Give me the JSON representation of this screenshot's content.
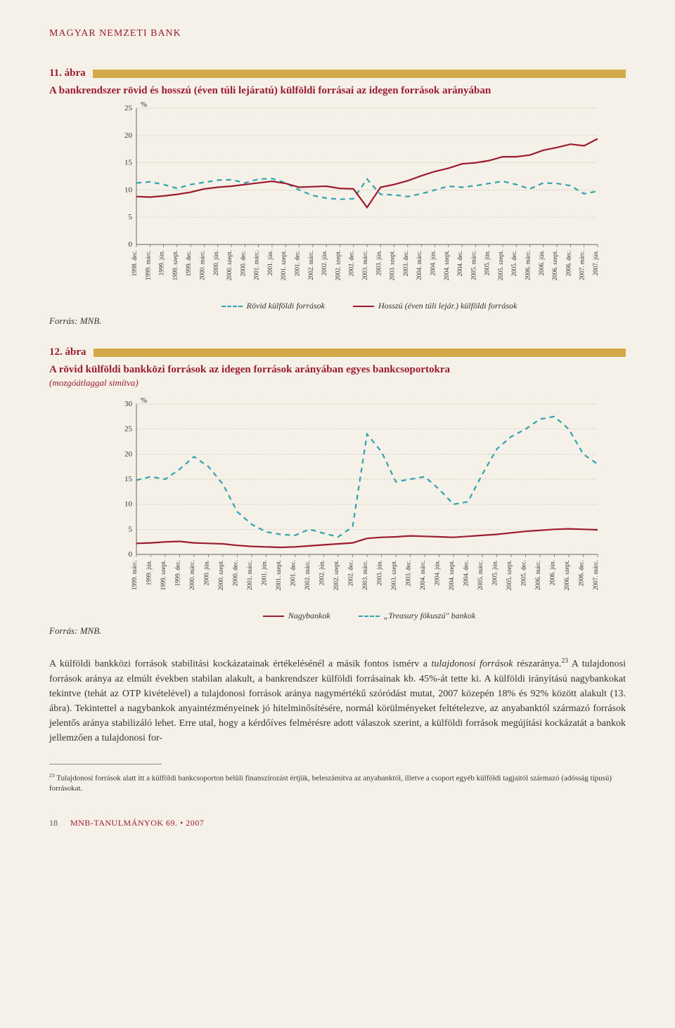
{
  "brand": "MAGYAR NEMZETI BANK",
  "fig11": {
    "num": "11. ábra",
    "title": "A bankrendszer rövid és hosszú (éven túli lejáratú) külföldi forrásai az idegen források arányában",
    "unit": "%",
    "ylim": [
      0,
      25
    ],
    "yticks": [
      0,
      5,
      10,
      15,
      20,
      25
    ],
    "x_labels": [
      "1998. dec.",
      "1999. márc.",
      "1999. jún.",
      "1999. szept.",
      "1999. dec.",
      "2000. márc.",
      "2000. jún.",
      "2000. szept.",
      "2000. dec.",
      "2001. márc.",
      "2001. jún.",
      "2001. szept.",
      "2001. dec.",
      "2002. márc.",
      "2002. jún.",
      "2002. szept.",
      "2002. dec.",
      "2003. márc.",
      "2003. jún.",
      "2003. szept.",
      "2003. dec.",
      "2004. márc.",
      "2004. jún.",
      "2004. szept.",
      "2004. dec.",
      "2005. márc.",
      "2005. jún.",
      "2005. szept.",
      "2005. dec.",
      "2006. márc.",
      "2006. jún.",
      "2006. szept.",
      "2006. dec.",
      "2007. márc.",
      "2007. jún."
    ],
    "series": [
      {
        "name": "Rövid külföldi források",
        "color": "#2fa3b0",
        "dashed": true,
        "values": [
          11.3,
          11.5,
          11.0,
          10.3,
          11.0,
          11.4,
          11.8,
          11.9,
          11.3,
          12.0,
          12.1,
          11.3,
          10.0,
          9.0,
          8.5,
          8.3,
          8.4,
          12.0,
          9.2,
          9.1,
          8.8,
          9.3,
          10.0,
          10.7,
          10.5,
          10.8,
          11.2,
          11.6,
          11.0,
          10.2,
          11.3,
          11.2,
          10.8,
          9.3,
          9.8
        ]
      },
      {
        "name": "Hosszú (éven túli lejár.) külföldi források",
        "color": "#9b1c2e",
        "dashed": false,
        "values": [
          8.8,
          8.7,
          8.9,
          9.2,
          9.6,
          10.2,
          10.5,
          10.7,
          11.0,
          11.3,
          11.6,
          11.2,
          10.5,
          10.6,
          10.7,
          10.3,
          10.2,
          6.8,
          10.5,
          11.0,
          11.7,
          12.6,
          13.4,
          14.0,
          14.8,
          15.0,
          15.4,
          16.1,
          16.1,
          16.4,
          17.3,
          17.8,
          18.4,
          18.1,
          19.4
        ]
      }
    ],
    "legend": [
      "Rövid külföldi források",
      "Hosszú (éven túli lejár.) külföldi források"
    ],
    "source": "Forrás: MNB.",
    "bg": "#f5f0e8",
    "grid": "#b8b0a0",
    "axis": "#666"
  },
  "fig12": {
    "num": "12. ábra",
    "title": "A rövid külföldi bankközi források az idegen források arányában egyes bankcsoportokra",
    "subtitle": "(mozgóátlaggal simítva)",
    "unit": "%",
    "ylim": [
      0,
      30
    ],
    "yticks": [
      0,
      5,
      10,
      15,
      20,
      25,
      30
    ],
    "x_labels": [
      "1999. márc.",
      "1999. jún.",
      "1999. szept.",
      "1999. dec.",
      "2000. márc.",
      "2000. jún.",
      "2000. szept.",
      "2000. dec.",
      "2001. márc.",
      "2001. jún.",
      "2001. szept.",
      "2001. dec.",
      "2002. márc.",
      "2002. jún.",
      "2002. szept.",
      "2002. dec.",
      "2003. márc.",
      "2003. jún.",
      "2003. szept.",
      "2003. dec.",
      "2004. márc.",
      "2004. jún.",
      "2004. szept.",
      "2004. dec.",
      "2005. márc.",
      "2005. jún.",
      "2005. szept.",
      "2005. dec.",
      "2006. márc.",
      "2006. jún.",
      "2006. szept.",
      "2006. dec.",
      "2007. márc."
    ],
    "series": [
      {
        "name": "Nagybankok",
        "color": "#9b1c2e",
        "dashed": false,
        "values": [
          2.2,
          2.3,
          2.5,
          2.6,
          2.3,
          2.2,
          2.1,
          1.8,
          1.6,
          1.5,
          1.4,
          1.5,
          1.7,
          1.9,
          2.1,
          2.3,
          3.2,
          3.4,
          3.5,
          3.7,
          3.6,
          3.5,
          3.4,
          3.6,
          3.8,
          4.0,
          4.3,
          4.6,
          4.8,
          5.0,
          5.1,
          5.0,
          4.9
        ]
      },
      {
        "name": "„Treasury fókuszú\" bankok",
        "color": "#2fa3b0",
        "dashed": true,
        "values": [
          14.8,
          15.5,
          15.0,
          17.0,
          19.5,
          17.5,
          14.0,
          8.5,
          6.0,
          4.5,
          4.0,
          3.8,
          5.0,
          4.2,
          3.5,
          5.5,
          24.0,
          20.5,
          14.5,
          15.0,
          15.5,
          13.0,
          10.0,
          10.5,
          16.0,
          21.0,
          23.5,
          25.0,
          27.0,
          27.5,
          25.0,
          20.0,
          18.0
        ]
      }
    ],
    "legend": [
      "Nagybankok",
      "„Treasury fókuszú\" bankok"
    ],
    "source": "Forrás: MNB.",
    "bg": "#f5f0e8",
    "grid": "#b8b0a0",
    "axis": "#666"
  },
  "body_paragraph_parts": {
    "p1a": "A külföldi bankközi források stabilitási kockázatainak értékelésénél a másik fontos ismérv a ",
    "p1_em": "tulajdonosi források",
    "p1b": " részaránya.",
    "sup": "23",
    "p2": " A tulajdonosi források aránya az elmúlt években stabilan alakult, a bankrendszer külföldi forrásainak kb. 45%-át tette ki. A külföldi irányítású nagybankokat tekintve (tehát az OTP kivételével) a tulajdonosi források aránya nagymértékű szóródást mutat, 2007 közepén 18% és 92% között alakult (13. ábra). Tekintettel a nagybankok anyaintézményeinek jó hitelminősítésére, normál körülményeket feltételezve, az anyabanktól származó források jelentős aránya stabilizáló lehet. Erre utal, hogy a kérdőíves felmérésre adott válaszok szerint, a külföldi források megújítási kockázatát a bankok jellemzően a tulajdonosi for-"
  },
  "footnote": {
    "num": "23",
    "text": " Tulajdonosi források alatt itt a külföldi bankcsoporton belüli finanszírozást értjük, beleszámítva az anyabanktól, illetve a csoport egyéb külföldi tagjaitól származó (adósság típusú) forrásokat."
  },
  "footer": {
    "page": "18",
    "title": "MNB-TANULMÁNYOK 69. • 2007"
  }
}
